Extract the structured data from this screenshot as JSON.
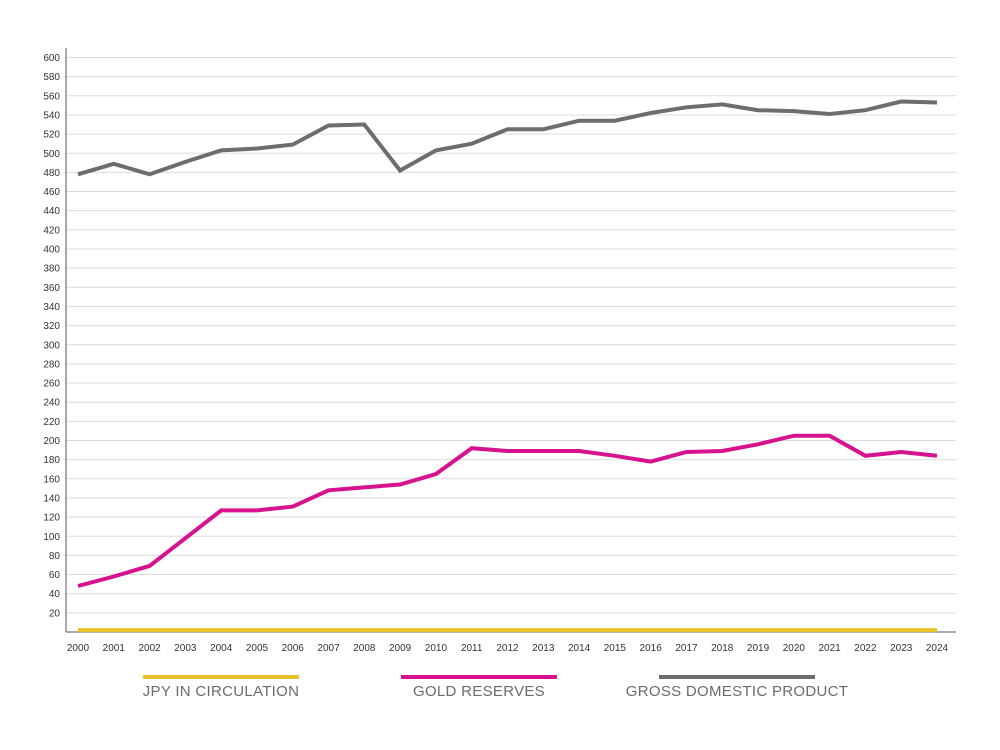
{
  "chart_data": {
    "type": "line",
    "title": "",
    "xlabel": "",
    "ylabel": "",
    "ylim": [
      0,
      600
    ],
    "yticks": [
      20,
      40,
      60,
      80,
      100,
      120,
      140,
      160,
      180,
      200,
      220,
      240,
      260,
      280,
      300,
      320,
      340,
      360,
      380,
      400,
      420,
      440,
      460,
      480,
      500,
      520,
      540,
      560,
      580,
      600
    ],
    "x": [
      "2000",
      "2001",
      "2002",
      "2003",
      "2004",
      "2005",
      "2006",
      "2007",
      "2008",
      "2009",
      "2010",
      "2011",
      "2012",
      "2013",
      "2014",
      "2015",
      "2016",
      "2017",
      "2018",
      "2019",
      "2020",
      "2021",
      "2022",
      "2023",
      "2024"
    ],
    "grid": true,
    "legend_position": "bottom",
    "series": [
      {
        "name": "JPY IN CIRCULATION",
        "color": "#e8c22a",
        "values": [
          2,
          2,
          2,
          2,
          2,
          2,
          2,
          2,
          2,
          2,
          2,
          2,
          2,
          2,
          2,
          2,
          2,
          2,
          2,
          2,
          2,
          2,
          2,
          2,
          2
        ]
      },
      {
        "name": "GOLD RESERVES",
        "color": "#d6128f",
        "values": [
          48,
          58,
          69,
          98,
          127,
          127,
          131,
          148,
          151,
          154,
          165,
          192,
          189,
          189,
          189,
          184,
          178,
          188,
          189,
          196,
          205,
          205,
          184,
          188,
          184
        ]
      },
      {
        "name": "GROSS DOMESTIC PRODUCT",
        "color": "#6d6d6f",
        "values": [
          478,
          489,
          478,
          491,
          503,
          505,
          509,
          529,
          530,
          482,
          503,
          510,
          525,
          525,
          534,
          534,
          542,
          548,
          551,
          545,
          544,
          541,
          545,
          554,
          553
        ]
      }
    ]
  }
}
